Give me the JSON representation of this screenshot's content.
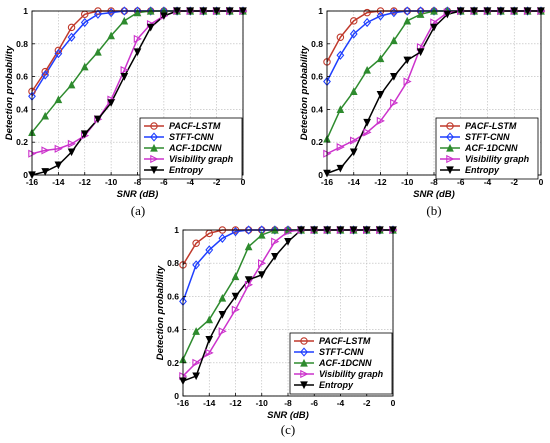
{
  "chart_data": [
    {
      "type": "line",
      "caption": "(a)",
      "xlabel": "SNR (dB)",
      "ylabel": "Detection probability",
      "xlim": [
        -16,
        0
      ],
      "ylim": [
        0,
        1
      ],
      "xticks": [
        -16,
        -14,
        -12,
        -10,
        -8,
        -6,
        -4,
        -2,
        0
      ],
      "yticks": [
        0,
        0.2,
        0.4,
        0.6,
        0.8,
        1
      ],
      "grid": true,
      "legend_position": "bottom-right",
      "x": [
        -16,
        -15,
        -14,
        -13,
        -12,
        -11,
        -10,
        -9,
        -8,
        -7,
        -6,
        -5,
        -4,
        -3,
        -2,
        -1,
        0
      ],
      "series": [
        {
          "name": "PACF-LSTM",
          "color": "#c0392b",
          "marker": "circle",
          "values": [
            0.51,
            0.63,
            0.76,
            0.9,
            0.98,
            1.0,
            1.0,
            1.0,
            1.0,
            1.0,
            1.0,
            1.0,
            1.0,
            1.0,
            1.0,
            1.0,
            1.0
          ]
        },
        {
          "name": "STFT-CNN",
          "color": "#1f3fff",
          "marker": "diamond",
          "values": [
            0.48,
            0.61,
            0.74,
            0.84,
            0.93,
            0.98,
            0.99,
            1.0,
            1.0,
            1.0,
            1.0,
            1.0,
            1.0,
            1.0,
            1.0,
            1.0,
            1.0
          ]
        },
        {
          "name": "ACF-1DCNN",
          "color": "#2e8b2e",
          "marker": "triangle-up",
          "values": [
            0.26,
            0.36,
            0.46,
            0.55,
            0.66,
            0.75,
            0.85,
            0.94,
            0.99,
            1.0,
            1.0,
            1.0,
            1.0,
            1.0,
            1.0,
            1.0,
            1.0
          ]
        },
        {
          "name": "Visibility graph",
          "color": "#cc33cc",
          "marker": "triangle-right",
          "values": [
            0.13,
            0.15,
            0.16,
            0.19,
            0.24,
            0.34,
            0.46,
            0.64,
            0.83,
            0.92,
            0.97,
            1.0,
            1.0,
            1.0,
            1.0,
            1.0,
            1.0
          ]
        },
        {
          "name": "Entropy",
          "color": "#000000",
          "marker": "triangle-down",
          "values": [
            0.0,
            0.02,
            0.06,
            0.14,
            0.25,
            0.34,
            0.44,
            0.6,
            0.75,
            0.9,
            0.97,
            1.0,
            1.0,
            1.0,
            1.0,
            1.0,
            1.0
          ]
        }
      ]
    },
    {
      "type": "line",
      "caption": "(b)",
      "xlabel": "SNR (dB)",
      "ylabel": "Detection probability",
      "xlim": [
        -16,
        0
      ],
      "ylim": [
        0,
        1
      ],
      "xticks": [
        -16,
        -14,
        -12,
        -10,
        -8,
        -6,
        -4,
        -2,
        0
      ],
      "yticks": [
        0,
        0.2,
        0.4,
        0.6,
        0.8,
        1
      ],
      "grid": true,
      "legend_position": "bottom-right",
      "x": [
        -16,
        -15,
        -14,
        -13,
        -12,
        -11,
        -10,
        -9,
        -8,
        -7,
        -6,
        -5,
        -4,
        -3,
        -2,
        -1,
        0
      ],
      "series": [
        {
          "name": "PACF-LSTM",
          "color": "#c0392b",
          "marker": "circle",
          "values": [
            0.69,
            0.84,
            0.94,
            0.99,
            1.0,
            1.0,
            1.0,
            1.0,
            1.0,
            1.0,
            1.0,
            1.0,
            1.0,
            1.0,
            1.0,
            1.0,
            1.0
          ]
        },
        {
          "name": "STFT-CNN",
          "color": "#1f3fff",
          "marker": "diamond",
          "values": [
            0.57,
            0.73,
            0.86,
            0.93,
            0.97,
            0.99,
            1.0,
            1.0,
            1.0,
            1.0,
            1.0,
            1.0,
            1.0,
            1.0,
            1.0,
            1.0,
            1.0
          ]
        },
        {
          "name": "ACF-1DCNN",
          "color": "#2e8b2e",
          "marker": "triangle-up",
          "values": [
            0.22,
            0.4,
            0.51,
            0.64,
            0.71,
            0.82,
            0.94,
            0.98,
            1.0,
            1.0,
            1.0,
            1.0,
            1.0,
            1.0,
            1.0,
            1.0,
            1.0
          ]
        },
        {
          "name": "Visibility graph",
          "color": "#cc33cc",
          "marker": "triangle-right",
          "values": [
            0.13,
            0.17,
            0.21,
            0.26,
            0.33,
            0.44,
            0.57,
            0.78,
            0.93,
            0.99,
            1.0,
            1.0,
            1.0,
            1.0,
            1.0,
            1.0,
            1.0
          ]
        },
        {
          "name": "Entropy",
          "color": "#000000",
          "marker": "triangle-down",
          "values": [
            0.01,
            0.04,
            0.14,
            0.32,
            0.49,
            0.6,
            0.7,
            0.75,
            0.9,
            0.98,
            1.0,
            1.0,
            1.0,
            1.0,
            1.0,
            1.0,
            1.0
          ]
        }
      ]
    },
    {
      "type": "line",
      "caption": "(c)",
      "xlabel": "SNR (dB)",
      "ylabel": "Detection probability",
      "xlim": [
        -16,
        0
      ],
      "ylim": [
        0,
        1
      ],
      "xticks": [
        -16,
        -14,
        -12,
        -10,
        -8,
        -6,
        -4,
        -2,
        0
      ],
      "yticks": [
        0,
        0.2,
        0.4,
        0.6,
        0.8,
        1
      ],
      "grid": true,
      "legend_position": "bottom-right",
      "x": [
        -16,
        -15,
        -14,
        -13,
        -12,
        -11,
        -10,
        -9,
        -8,
        -7,
        -6,
        -5,
        -4,
        -3,
        -2,
        -1,
        0
      ],
      "series": [
        {
          "name": "PACF-LSTM",
          "color": "#c0392b",
          "marker": "circle",
          "values": [
            0.79,
            0.92,
            0.98,
            1.0,
            1.0,
            1.0,
            1.0,
            1.0,
            1.0,
            1.0,
            1.0,
            1.0,
            1.0,
            1.0,
            1.0,
            1.0,
            1.0
          ]
        },
        {
          "name": "STFT-CNN",
          "color": "#1f3fff",
          "marker": "diamond",
          "values": [
            0.57,
            0.79,
            0.88,
            0.95,
            0.99,
            1.0,
            1.0,
            1.0,
            1.0,
            1.0,
            1.0,
            1.0,
            1.0,
            1.0,
            1.0,
            1.0,
            1.0
          ]
        },
        {
          "name": "ACF-1DCNN",
          "color": "#2e8b2e",
          "marker": "triangle-up",
          "values": [
            0.22,
            0.39,
            0.46,
            0.59,
            0.72,
            0.9,
            0.97,
            1.0,
            1.0,
            1.0,
            1.0,
            1.0,
            1.0,
            1.0,
            1.0,
            1.0,
            1.0
          ]
        },
        {
          "name": "Visibility graph",
          "color": "#cc33cc",
          "marker": "triangle-right",
          "values": [
            0.12,
            0.2,
            0.26,
            0.39,
            0.52,
            0.67,
            0.8,
            0.93,
            0.99,
            1.0,
            1.0,
            1.0,
            1.0,
            1.0,
            1.0,
            1.0,
            1.0
          ]
        },
        {
          "name": "Entropy",
          "color": "#000000",
          "marker": "triangle-down",
          "values": [
            0.09,
            0.12,
            0.34,
            0.49,
            0.6,
            0.7,
            0.73,
            0.84,
            0.93,
            1.0,
            1.0,
            1.0,
            1.0,
            1.0,
            1.0,
            1.0,
            1.0
          ]
        }
      ]
    }
  ]
}
